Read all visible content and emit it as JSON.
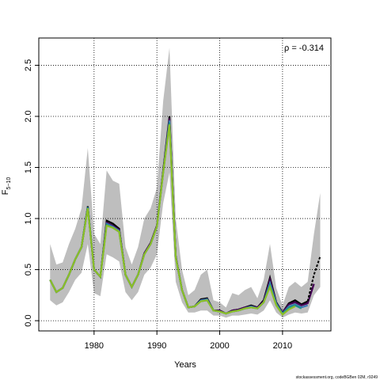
{
  "chart_data": {
    "type": "line",
    "annotation": "ρ = -0.314",
    "xlabel": "Years",
    "ylabel": "F",
    "ylabel_sub": "5−10",
    "footer": "stockassessment.org, codeBGBen 02M, r9249",
    "x": [
      1973,
      1974,
      1975,
      1976,
      1977,
      1978,
      1979,
      1980,
      1981,
      1982,
      1983,
      1984,
      1985,
      1986,
      1987,
      1988,
      1989,
      1990,
      1991,
      1992,
      1993,
      1994,
      1995,
      1996,
      1997,
      1998,
      1999,
      2000,
      2001,
      2002,
      2003,
      2004,
      2005,
      2006,
      2007,
      2008,
      2009,
      2010,
      2011,
      2012,
      2013,
      2014,
      2015,
      2016
    ],
    "band": {
      "color": "#bebebe",
      "upper": [
        0.75,
        0.55,
        0.57,
        0.75,
        0.9,
        1.1,
        1.69,
        0.85,
        0.75,
        1.47,
        1.37,
        1.34,
        0.72,
        0.55,
        0.72,
        1.0,
        1.1,
        1.3,
        2.15,
        2.67,
        1.0,
        0.5,
        0.25,
        0.3,
        0.45,
        0.5,
        0.2,
        0.18,
        0.13,
        0.27,
        0.25,
        0.3,
        0.33,
        0.22,
        0.4,
        0.75,
        0.32,
        0.15,
        0.33,
        0.38,
        0.33,
        0.38,
        0.85,
        1.25
      ],
      "lower": [
        0.2,
        0.15,
        0.18,
        0.28,
        0.4,
        0.47,
        0.75,
        0.27,
        0.24,
        0.65,
        0.62,
        0.58,
        0.28,
        0.2,
        0.28,
        0.45,
        0.52,
        0.65,
        1.15,
        1.45,
        0.38,
        0.18,
        0.08,
        0.08,
        0.1,
        0.1,
        0.05,
        0.05,
        0.03,
        0.05,
        0.05,
        0.06,
        0.07,
        0.06,
        0.1,
        0.2,
        0.08,
        0.03,
        0.06,
        0.08,
        0.07,
        0.08,
        0.25,
        0.33
      ]
    },
    "series": [
      {
        "color": "#000000",
        "values": [
          0.4,
          0.28,
          0.32,
          0.45,
          0.6,
          0.72,
          1.12,
          0.5,
          0.43,
          0.98,
          0.95,
          0.9,
          0.45,
          0.33,
          0.45,
          0.66,
          0.76,
          0.93,
          1.47,
          2.0,
          0.63,
          0.3,
          0.13,
          0.14,
          0.21,
          0.22,
          0.1,
          0.1,
          0.07,
          0.1,
          0.11,
          0.13,
          0.15,
          0.13,
          0.2,
          0.42,
          0.18,
          0.08,
          0.17,
          0.2,
          0.16,
          0.19,
          null,
          null
        ]
      },
      {
        "color": "#440154",
        "values": [
          0.4,
          0.28,
          0.32,
          0.45,
          0.6,
          0.72,
          1.11,
          0.5,
          0.43,
          0.96,
          0.93,
          0.89,
          0.45,
          0.33,
          0.45,
          0.66,
          0.76,
          0.93,
          1.46,
          1.98,
          0.63,
          0.3,
          0.13,
          0.14,
          0.2,
          0.21,
          0.1,
          0.1,
          0.07,
          0.1,
          0.11,
          0.13,
          0.14,
          0.13,
          0.19,
          0.4,
          0.17,
          0.08,
          0.16,
          0.18,
          0.15,
          0.17,
          0.36,
          null
        ]
      },
      {
        "color": "#3b77b5",
        "values": [
          0.4,
          0.28,
          0.32,
          0.45,
          0.6,
          0.72,
          1.11,
          0.5,
          0.43,
          0.95,
          0.92,
          0.88,
          0.45,
          0.33,
          0.45,
          0.65,
          0.75,
          0.92,
          1.45,
          1.96,
          0.62,
          0.3,
          0.13,
          0.14,
          0.2,
          0.21,
          0.1,
          0.09,
          0.07,
          0.09,
          0.1,
          0.12,
          0.14,
          0.12,
          0.18,
          0.37,
          0.17,
          0.07,
          0.14,
          0.16,
          0.13,
          0.15,
          null,
          null
        ]
      },
      {
        "color": "#21908c",
        "values": [
          0.4,
          0.28,
          0.32,
          0.45,
          0.6,
          0.72,
          1.11,
          0.5,
          0.43,
          0.94,
          0.91,
          0.87,
          0.45,
          0.33,
          0.45,
          0.65,
          0.75,
          0.92,
          1.45,
          1.94,
          0.62,
          0.3,
          0.13,
          0.14,
          0.19,
          0.2,
          0.1,
          0.09,
          0.07,
          0.09,
          0.1,
          0.12,
          0.13,
          0.12,
          0.18,
          0.35,
          0.16,
          0.07,
          0.13,
          0.15,
          0.12,
          null,
          null,
          null
        ]
      },
      {
        "color": "#8cbf26",
        "values": [
          0.4,
          0.28,
          0.32,
          0.45,
          0.6,
          0.72,
          1.1,
          0.5,
          0.43,
          0.93,
          0.91,
          0.87,
          0.45,
          0.33,
          0.45,
          0.65,
          0.75,
          0.92,
          1.45,
          1.92,
          0.62,
          0.3,
          0.13,
          0.14,
          0.19,
          0.2,
          0.1,
          0.09,
          0.07,
          0.09,
          0.1,
          0.12,
          0.13,
          0.12,
          0.18,
          0.33,
          0.15,
          0.06,
          0.11,
          0.14,
          null,
          null,
          null,
          null
        ]
      },
      {
        "color": "#000000",
        "dashed": true,
        "values": [
          null,
          null,
          null,
          null,
          null,
          null,
          null,
          null,
          null,
          null,
          null,
          null,
          null,
          null,
          null,
          null,
          null,
          null,
          null,
          null,
          null,
          null,
          null,
          null,
          null,
          null,
          null,
          null,
          null,
          null,
          null,
          null,
          null,
          null,
          null,
          null,
          null,
          null,
          null,
          null,
          null,
          0.19,
          0.45,
          0.63
        ]
      }
    ],
    "xlim": [
      1971.2,
      2017.7
    ],
    "ylim": [
      -0.1,
      2.767
    ],
    "xticks": [
      1980,
      1990,
      2000,
      2010
    ],
    "yticks": [
      {
        "value": 0,
        "label": "0.0"
      },
      0.5,
      {
        "value": 1,
        "label": "1.0"
      },
      1.5,
      {
        "value": 2,
        "label": "2.0"
      },
      2.5
    ],
    "grid": true
  }
}
